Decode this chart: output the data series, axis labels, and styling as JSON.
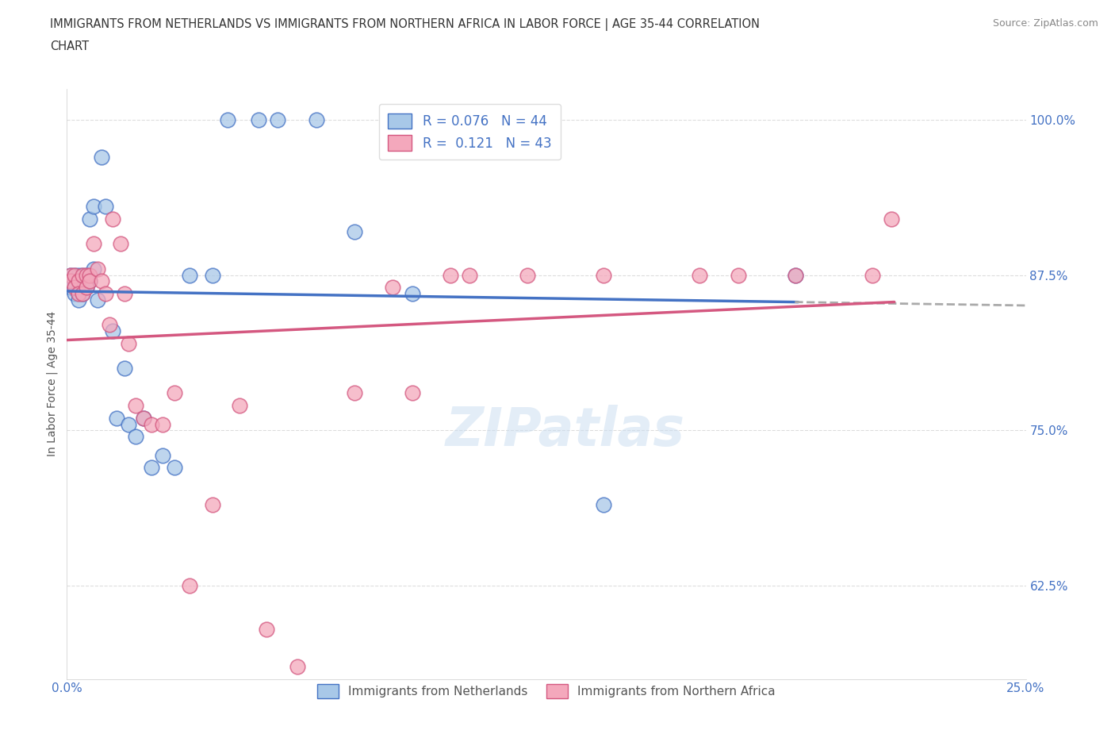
{
  "title": "IMMIGRANTS FROM NETHERLANDS VS IMMIGRANTS FROM NORTHERN AFRICA IN LABOR FORCE | AGE 35-44 CORRELATION\nCHART",
  "source_text": "Source: ZipAtlas.com",
  "ylabel": "In Labor Force | Age 35-44",
  "watermark": "ZIPatlas",
  "legend_r1": "R = 0.076",
  "legend_n1": "N = 44",
  "legend_r2": "R =  0.121",
  "legend_n2": "N = 43",
  "color_blue": "#A8C8E8",
  "color_pink": "#F4A8BC",
  "line_blue": "#4472C4",
  "line_pink": "#D45880",
  "line_blue_dash": "#AAAAAA",
  "axis_color": "#4472C4",
  "grid_color": "#DDDDDD",
  "title_color": "#333333",
  "xlim": [
    0.0,
    0.25
  ],
  "ylim": [
    0.55,
    1.025
  ],
  "yticks": [
    0.625,
    0.75,
    0.875,
    1.0
  ],
  "ytick_labels": [
    "62.5%",
    "75.0%",
    "87.5%",
    "100.0%"
  ],
  "xticks": [
    0.0,
    0.05,
    0.1,
    0.15,
    0.2,
    0.25
  ],
  "xtick_labels": [
    "0.0%",
    "",
    "",
    "",
    "",
    "25.0%"
  ],
  "blue_x": [
    0.001,
    0.001,
    0.001,
    0.002,
    0.002,
    0.002,
    0.002,
    0.003,
    0.003,
    0.003,
    0.003,
    0.003,
    0.004,
    0.004,
    0.004,
    0.005,
    0.005,
    0.005,
    0.006,
    0.006,
    0.007,
    0.007,
    0.008,
    0.009,
    0.01,
    0.012,
    0.013,
    0.015,
    0.016,
    0.018,
    0.02,
    0.022,
    0.025,
    0.028,
    0.032,
    0.038,
    0.042,
    0.05,
    0.055,
    0.065,
    0.075,
    0.09,
    0.14,
    0.19
  ],
  "blue_y": [
    0.875,
    0.87,
    0.865,
    0.875,
    0.87,
    0.865,
    0.86,
    0.875,
    0.87,
    0.865,
    0.86,
    0.855,
    0.875,
    0.87,
    0.86,
    0.875,
    0.87,
    0.865,
    0.92,
    0.87,
    0.93,
    0.88,
    0.855,
    0.97,
    0.93,
    0.83,
    0.76,
    0.8,
    0.755,
    0.745,
    0.76,
    0.72,
    0.73,
    0.72,
    0.875,
    0.875,
    1.0,
    1.0,
    1.0,
    1.0,
    0.91,
    0.86,
    0.69,
    0.875
  ],
  "pink_x": [
    0.001,
    0.001,
    0.002,
    0.002,
    0.003,
    0.003,
    0.004,
    0.004,
    0.005,
    0.005,
    0.006,
    0.006,
    0.007,
    0.008,
    0.009,
    0.01,
    0.011,
    0.012,
    0.014,
    0.015,
    0.016,
    0.018,
    0.02,
    0.022,
    0.025,
    0.028,
    0.032,
    0.038,
    0.045,
    0.052,
    0.06,
    0.075,
    0.085,
    0.09,
    0.1,
    0.105,
    0.12,
    0.14,
    0.165,
    0.175,
    0.19,
    0.21,
    0.215
  ],
  "pink_y": [
    0.875,
    0.87,
    0.875,
    0.865,
    0.87,
    0.86,
    0.875,
    0.86,
    0.875,
    0.865,
    0.875,
    0.87,
    0.9,
    0.88,
    0.87,
    0.86,
    0.835,
    0.92,
    0.9,
    0.86,
    0.82,
    0.77,
    0.76,
    0.755,
    0.755,
    0.78,
    0.625,
    0.69,
    0.77,
    0.59,
    0.56,
    0.78,
    0.865,
    0.78,
    0.875,
    0.875,
    0.875,
    0.875,
    0.875,
    0.875,
    0.875,
    0.875,
    0.92
  ]
}
